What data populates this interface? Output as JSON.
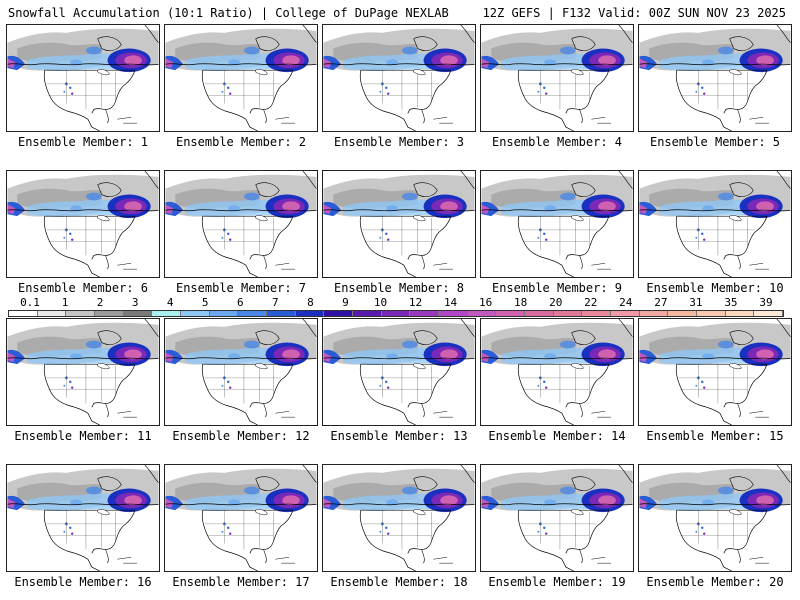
{
  "header": {
    "title": "Snowfall Accumulation (10:1 Ratio) | College of DuPage NEXLAB",
    "run_info": "12Z GEFS | F132 Valid: 00Z SUN NOV 23 2025"
  },
  "colorbar": {
    "labels": [
      "0.1",
      "1",
      "2",
      "3",
      "4",
      "5",
      "6",
      "7",
      "8",
      "9",
      "10",
      "12",
      "14",
      "16",
      "18",
      "20",
      "22",
      "24",
      "27",
      "31",
      "35",
      "39"
    ],
    "colors": [
      "#ffffff",
      "#e8e8e8",
      "#c4c4c4",
      "#9a9a9a",
      "#7a7a7a",
      "#a8f0f0",
      "#8cc8f8",
      "#6aa8f0",
      "#4a88e8",
      "#2a5cd8",
      "#1a30c0",
      "#3010a8",
      "#5a1ab0",
      "#7a28b8",
      "#9a38c0",
      "#b048c8",
      "#c058c0",
      "#d060b0",
      "#d86aa0",
      "#e07898",
      "#e8889c",
      "#f098a8",
      "#f0a8a0",
      "#f4b8a0",
      "#f8c8b0",
      "#fcd8c0",
      "#fde8d8"
    ]
  },
  "panels": [
    {
      "label": "Ensemble Member: 1"
    },
    {
      "label": "Ensemble Member: 2"
    },
    {
      "label": "Ensemble Member: 3"
    },
    {
      "label": "Ensemble Member: 4"
    },
    {
      "label": "Ensemble Member: 5"
    },
    {
      "label": "Ensemble Member: 6"
    },
    {
      "label": "Ensemble Member: 7"
    },
    {
      "label": "Ensemble Member: 8"
    },
    {
      "label": "Ensemble Member: 9"
    },
    {
      "label": "Ensemble Member: 10"
    },
    {
      "label": "Ensemble Member: 11"
    },
    {
      "label": "Ensemble Member: 12"
    },
    {
      "label": "Ensemble Member: 13"
    },
    {
      "label": "Ensemble Member: 14"
    },
    {
      "label": "Ensemble Member: 15"
    },
    {
      "label": "Ensemble Member: 16"
    },
    {
      "label": "Ensemble Member: 17"
    },
    {
      "label": "Ensemble Member: 18"
    },
    {
      "label": "Ensemble Member: 19"
    },
    {
      "label": "Ensemble Member: 20"
    }
  ]
}
